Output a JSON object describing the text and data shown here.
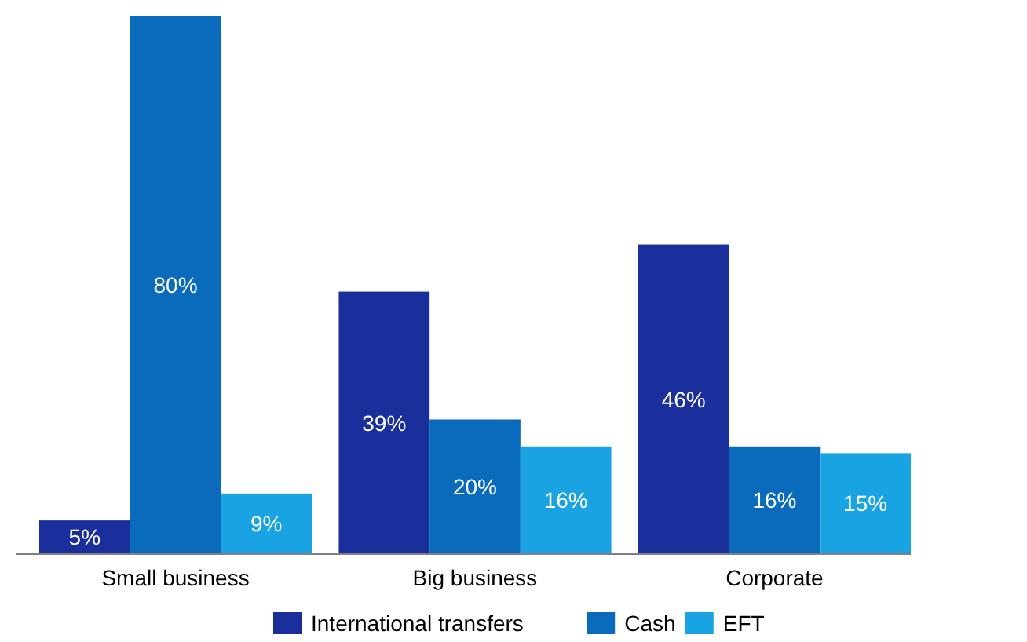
{
  "chart_data": {
    "type": "bar",
    "categories": [
      "Small business",
      "Big business",
      "Corporate"
    ],
    "series": [
      {
        "name": "International transfers",
        "color": "#1a2e9c",
        "values": [
          5,
          39,
          46
        ],
        "value_labels": [
          "5%",
          "39%",
          "46%"
        ]
      },
      {
        "name": "Cash",
        "color": "#0a6bbd",
        "values": [
          80,
          20,
          16
        ],
        "value_labels": [
          "80%",
          "20%",
          "16%"
        ]
      },
      {
        "name": "EFT",
        "color": "#1aa3e3",
        "values": [
          9,
          16,
          15
        ],
        "value_labels": [
          "9%",
          "16%",
          "15%"
        ]
      }
    ],
    "legend": "bottom"
  }
}
